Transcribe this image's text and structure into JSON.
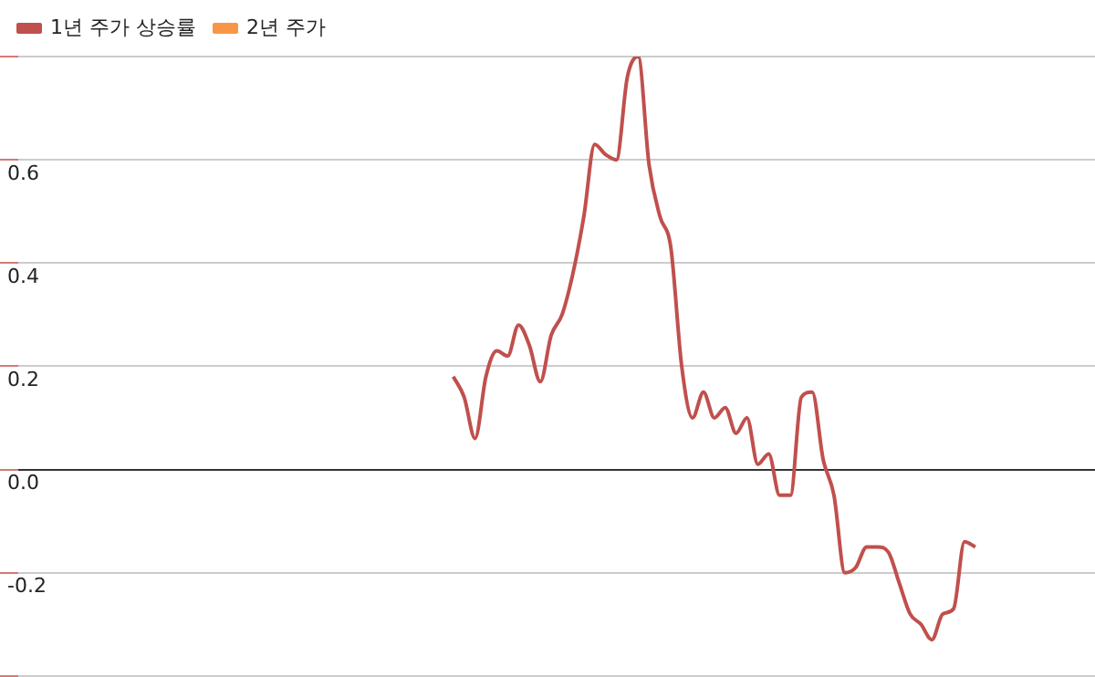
{
  "chart_data": {
    "type": "line",
    "categories": [
      null,
      null,
      null,
      null,
      null,
      null,
      null,
      null,
      null,
      null,
      null,
      null,
      null,
      null,
      null,
      null,
      null,
      null,
      null,
      null,
      null,
      null,
      null,
      null,
      null,
      null,
      null,
      null,
      null,
      null,
      null,
      null,
      null,
      null,
      null,
      null,
      null,
      null,
      null,
      null,
      null,
      null,
      null,
      null,
      null,
      null,
      null,
      null,
      null,
      null,
      null,
      null,
      null,
      null,
      null,
      null,
      null,
      null,
      null,
      null,
      null,
      null,
      null,
      null,
      null,
      null,
      null,
      null,
      null,
      null,
      null,
      null,
      null,
      null,
      null,
      null,
      null,
      null,
      null,
      null,
      null,
      null,
      null,
      null,
      null,
      null,
      null,
      null,
      null,
      null,
      null,
      null,
      null,
      null,
      null,
      null,
      null,
      null,
      null,
      null
    ],
    "series": [
      {
        "name": "1년 주가 상승률",
        "color": "#c0504d",
        "values": [
          null,
          null,
          null,
          null,
          null,
          null,
          null,
          null,
          null,
          null,
          null,
          null,
          null,
          null,
          null,
          null,
          null,
          null,
          null,
          null,
          null,
          null,
          null,
          null,
          null,
          null,
          null,
          null,
          null,
          null,
          null,
          null,
          null,
          null,
          null,
          null,
          null,
          null,
          null,
          null,
          0.18,
          0.14,
          0.06,
          0.18,
          0.23,
          0.22,
          0.28,
          0.24,
          0.17,
          0.26,
          0.3,
          0.38,
          0.49,
          0.63,
          0.61,
          0.6,
          0.76,
          0.8,
          0.59,
          0.49,
          0.43,
          0.2,
          0.1,
          0.15,
          0.1,
          0.12,
          0.07,
          0.1,
          0.01,
          0.03,
          -0.05,
          -0.05,
          0.14,
          0.15,
          0.02,
          -0.05,
          -0.2,
          -0.19,
          -0.15,
          -0.15,
          -0.16,
          -0.22,
          -0.28,
          -0.3,
          -0.33,
          -0.28,
          -0.27,
          -0.14,
          -0.15,
          null,
          null,
          null,
          null,
          null,
          null,
          null,
          null,
          null,
          null,
          null
        ]
      },
      {
        "name": "2년 주가",
        "color": "#f79646",
        "values": [
          null,
          null,
          null,
          null,
          null,
          null,
          null,
          null,
          null,
          null,
          null,
          null,
          null,
          null,
          null,
          null,
          null,
          null,
          null,
          null,
          null,
          null,
          null,
          null,
          null,
          null,
          null,
          null,
          null,
          null,
          null,
          null,
          null,
          null,
          null,
          null,
          null,
          null,
          null,
          null,
          null,
          null,
          null,
          null,
          null,
          null,
          null,
          null,
          null,
          null,
          null,
          null,
          null,
          null,
          null,
          null,
          null,
          null,
          null,
          null,
          null,
          null,
          null,
          null,
          null,
          null,
          null,
          null,
          null,
          null,
          null,
          null,
          null,
          null,
          null,
          null,
          null,
          null,
          null,
          null,
          null,
          null,
          null,
          null,
          null,
          null,
          null,
          null,
          null,
          null,
          null,
          null,
          null,
          null,
          null,
          null,
          null,
          null,
          null,
          null
        ]
      }
    ],
    "ylim": [
      -0.4,
      0.8
    ],
    "yticks": [
      {
        "value": -0.4,
        "label": null
      },
      -0.2,
      {
        "value": 0,
        "label": "0.0"
      },
      0.2,
      0.4,
      0.6,
      {
        "value": 0.8,
        "label": null
      }
    ],
    "grid": "y",
    "legend": "top left",
    "marker": "none",
    "line_style": "solid",
    "tick_labels": "y"
  }
}
